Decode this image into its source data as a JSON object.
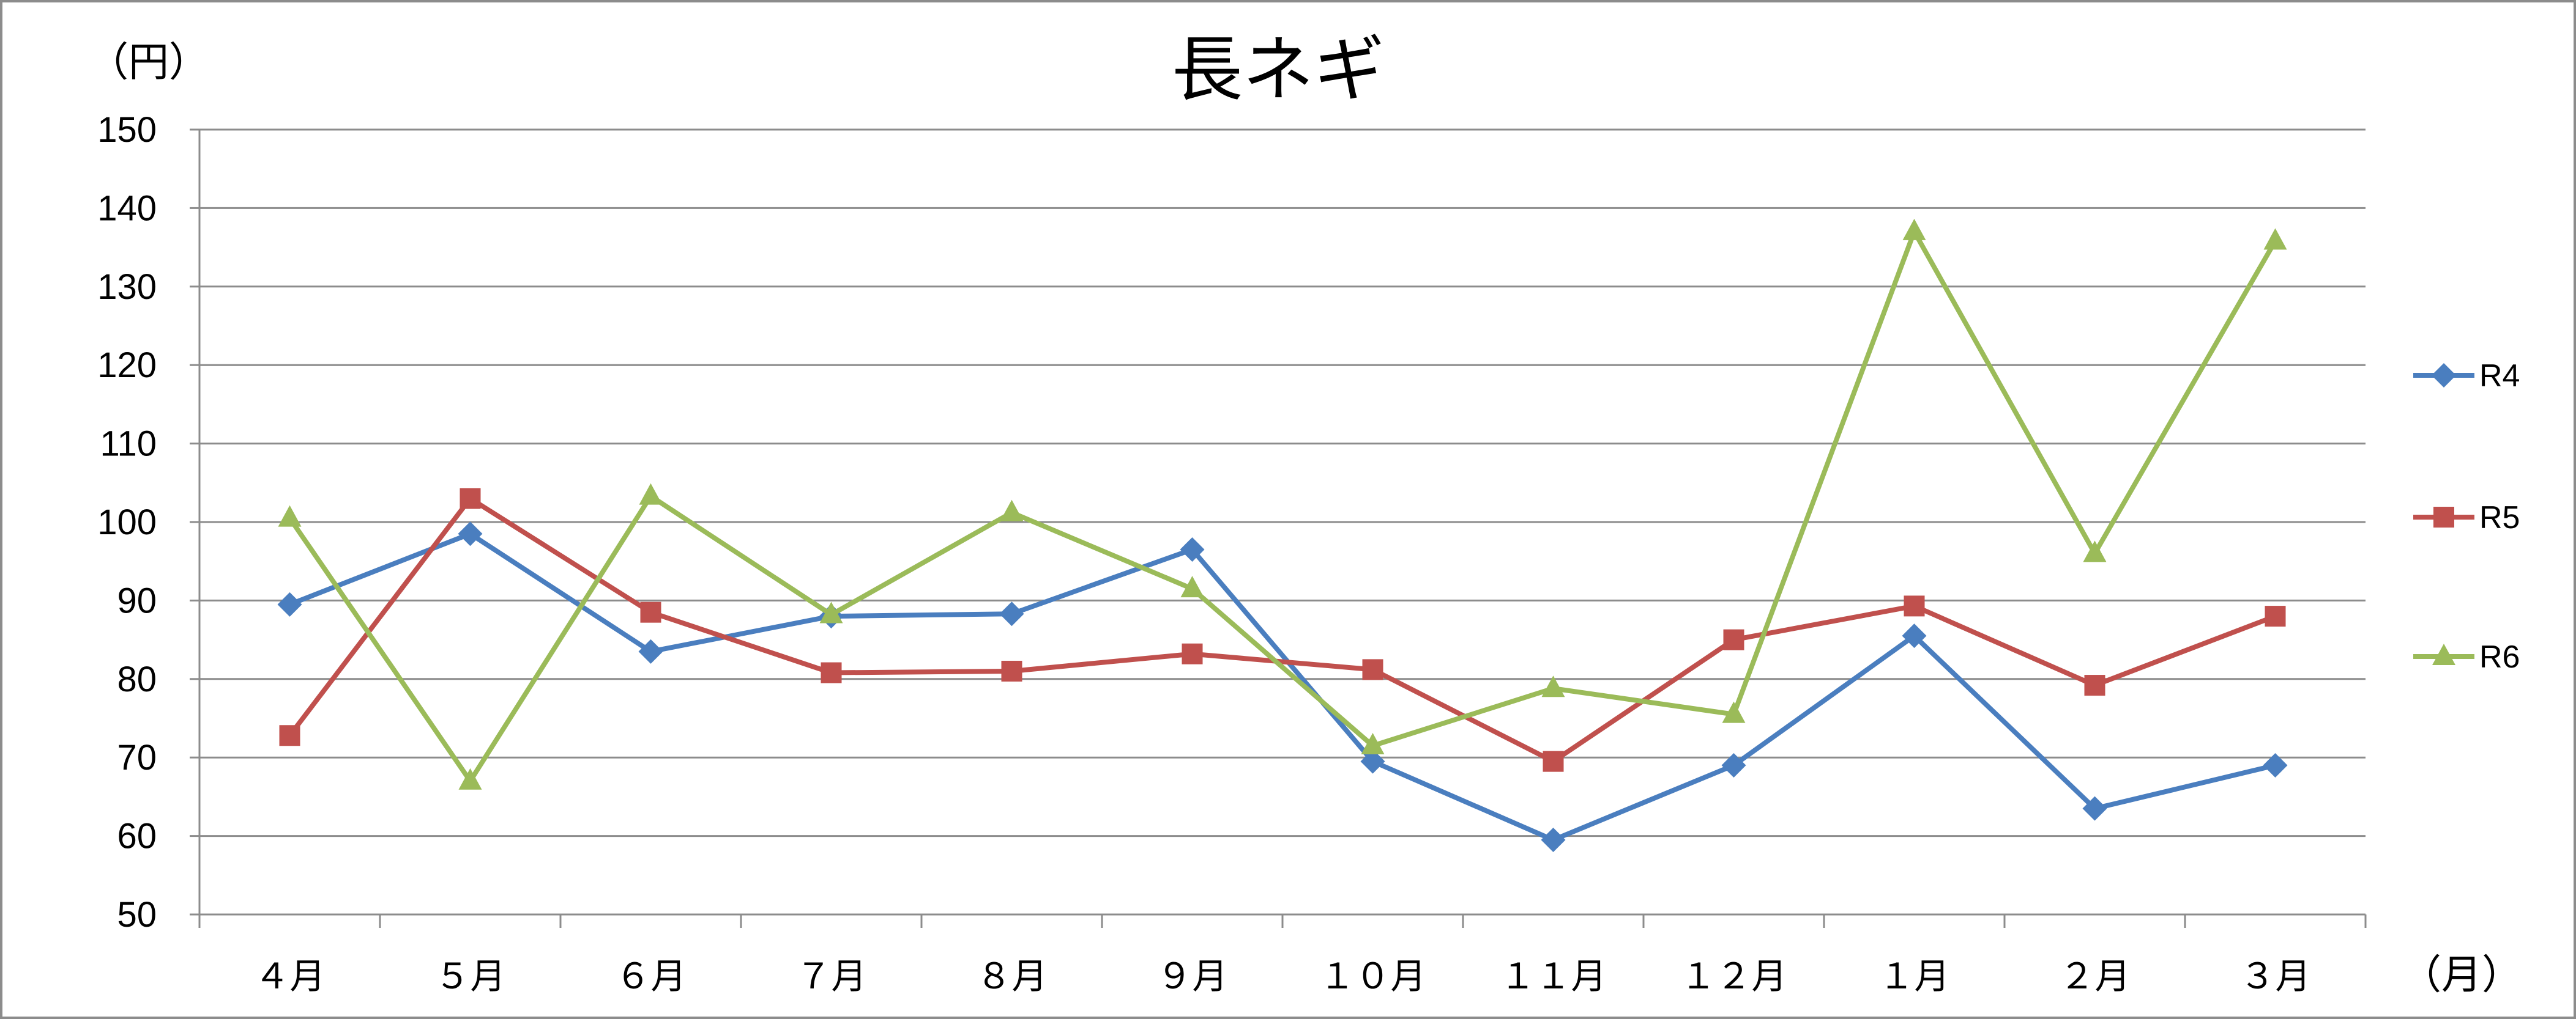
{
  "chart_data": {
    "type": "line",
    "title": "長ネギ",
    "y_unit_label": "（円）",
    "x_unit_label": "（月）",
    "categories": [
      "４月",
      "５月",
      "６月",
      "７月",
      "８月",
      "９月",
      "１０月",
      "１１月",
      "１２月",
      "１月",
      "２月",
      "３月"
    ],
    "ylim": [
      50,
      150
    ],
    "y_ticks": [
      "50",
      "60",
      "70",
      "80",
      "90",
      "100",
      "110",
      "120",
      "130",
      "140",
      "150"
    ],
    "grid": true,
    "legend_position": "right",
    "series": [
      {
        "name": "R4",
        "color": "#4a7ebf",
        "marker": "diamond",
        "values": [
          89.5,
          98.5,
          83.5,
          88,
          88.3,
          96.5,
          69.5,
          59.5,
          69,
          85.5,
          63.5,
          69
        ]
      },
      {
        "name": "R5",
        "color": "#c0504d",
        "marker": "square",
        "values": [
          72.8,
          103,
          88.5,
          80.8,
          81,
          83.2,
          81.2,
          69.5,
          85,
          89.3,
          79.2,
          88
        ]
      },
      {
        "name": "R6",
        "color": "#9bbb59",
        "marker": "triangle",
        "values": [
          100.5,
          67,
          103.3,
          88.2,
          101.2,
          91.5,
          71.5,
          78.8,
          75.5,
          137,
          96,
          135.8
        ]
      }
    ]
  }
}
